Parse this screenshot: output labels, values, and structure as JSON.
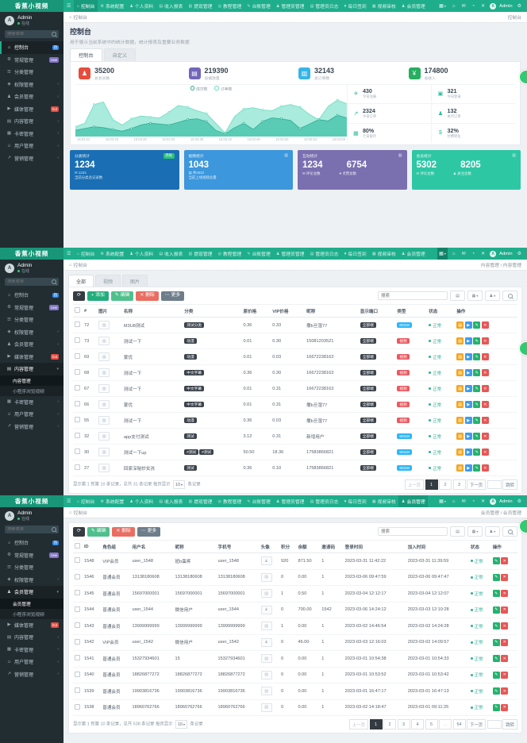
{
  "brand": {
    "logo": "香蕉小视频"
  },
  "navbar": {
    "menu_icon": "☰",
    "items": [
      {
        "label": "控制台",
        "icon": "⌂",
        "icon_name": "home-icon"
      },
      {
        "label": "系统配置",
        "icon": "⚙",
        "icon_name": "gear-icon"
      },
      {
        "label": "个人资料",
        "icon": "♟",
        "icon_name": "user-icon"
      },
      {
        "label": "收入报表",
        "icon": "▤",
        "icon_name": "chart-icon"
      },
      {
        "label": "提现管理",
        "icon": "▥",
        "icon_name": "withdraw-icon"
      },
      {
        "label": "教程管理",
        "icon": "◎",
        "icon_name": "course-icon"
      },
      {
        "label": "台账管理",
        "icon": "✎",
        "icon_name": "ledger-icon"
      },
      {
        "label": "管理员管理",
        "icon": "♟",
        "icon_name": "admin-icon"
      },
      {
        "label": "管理员日志",
        "icon": "▤",
        "icon_name": "log-icon"
      },
      {
        "label": "每日签到",
        "icon": "♥",
        "icon_name": "heart-icon"
      },
      {
        "label": "视频审核",
        "icon": "▦",
        "icon_name": "review-icon"
      },
      {
        "label": "会员管理",
        "icon": "♟",
        "icon_name": "member-icon"
      }
    ],
    "right_icons": [
      {
        "name": "apps-grid-icon",
        "glyph": "▦"
      },
      {
        "name": "home-icon",
        "glyph": "⌂"
      },
      {
        "name": "message-icon",
        "glyph": "✉"
      },
      {
        "name": "bell-icon",
        "glyph": "◔"
      },
      {
        "name": "fullscreen-close-icon",
        "glyph": "✕"
      }
    ],
    "user": "Admin",
    "settings_icon": "⚙"
  },
  "sidebar": {
    "user": "Admin",
    "status": "在线",
    "search_placeholder": "搜索菜单",
    "items": [
      {
        "label": "控制台",
        "icon": "⌂",
        "badge": "热",
        "badge_color": "#2d8cf0"
      },
      {
        "label": "常规管理",
        "icon": "⚙",
        "badge": "new",
        "badge_color": "#8475c7"
      },
      {
        "label": "分类管理",
        "icon": "☰"
      },
      {
        "label": "权限管理",
        "icon": "◈",
        "arrow": true
      },
      {
        "label": "会员管理",
        "icon": "♟",
        "arrow": true
      },
      {
        "label": "媒体管理",
        "icon": "▶",
        "badge": "hot",
        "badge_color": "#e64d42"
      },
      {
        "label": "内容管理",
        "icon": "▤",
        "arrow": true
      },
      {
        "label": "卡密管理",
        "icon": "▦",
        "arrow": true
      },
      {
        "label": "用户管理",
        "icon": "☺",
        "arrow": true
      },
      {
        "label": "营销管理",
        "icon": "↗",
        "arrow": true
      }
    ],
    "states": {
      "panel1": {
        "active": "控制台"
      },
      "panel2": {
        "expanded": "内容管理",
        "subs": [
          "内容管理",
          "小程序浏览视频"
        ],
        "active_sub": "内容管理"
      },
      "panel3": {
        "expanded": "会员管理",
        "subs": [
          "会员管理",
          "小程序浏览视频"
        ],
        "active_sub": "会员管理"
      }
    }
  },
  "panel1": {
    "breadcrumb": "控制台",
    "location": "控制台",
    "title": "控制台",
    "subtitle": "用于展示当前系统中的统计数据，统计报表及重要业务数据",
    "tabs": [
      "控制台",
      "自定义"
    ],
    "active_tab": 0,
    "stat_tiles": [
      {
        "value": "35200",
        "label": "总会员数",
        "color": "#e74c3c",
        "icon": "♟",
        "icon_name": "members-icon"
      },
      {
        "value": "219390",
        "label": "总播放量",
        "color": "#7266ba",
        "icon": "▤",
        "icon_name": "plays-icon"
      },
      {
        "value": "32143",
        "label": "总订单数",
        "color": "#36b5e8",
        "icon": "▥",
        "icon_name": "orders-icon"
      },
      {
        "value": "174800",
        "label": "总收入",
        "color": "#27ae60",
        "icon": "¥",
        "icon_name": "yen-icon"
      }
    ],
    "chart_data": {
      "type": "area",
      "title": "",
      "legend": [
        "成交数",
        "订单数"
      ],
      "legend_position": "top",
      "grid": false,
      "x": [
        "16:03:22",
        "16:03:26",
        "16:03:30",
        "16:03:34",
        "16:03:38",
        "16:03:42",
        "16:03:46",
        "16:03:50",
        "16:03:54",
        "16:03:58"
      ],
      "ylim": [
        0,
        100
      ],
      "series": [
        {
          "name": "订单数",
          "color": "#6fdcc4",
          "fill": "#9ae8d6",
          "values": [
            22,
            30,
            72,
            78,
            38,
            26,
            40,
            46,
            44,
            42,
            55,
            70,
            66,
            58,
            52,
            30,
            8,
            45,
            62,
            65,
            60,
            58,
            68,
            72,
            66,
            50,
            38,
            68,
            82,
            74
          ]
        },
        {
          "name": "成交数",
          "color": "#2fae95",
          "fill": "#4cc5ad",
          "values": [
            14,
            18,
            22,
            20,
            16,
            12,
            18,
            26,
            30,
            28,
            26,
            32,
            38,
            40,
            34,
            14,
            6,
            20,
            30,
            16,
            34,
            42,
            40,
            36,
            18,
            28,
            38,
            35,
            48,
            42
          ]
        }
      ]
    },
    "mini_stats": [
      {
        "value": "430",
        "label": "今日注册",
        "icon": "✈",
        "icon_name": "rocket-icon"
      },
      {
        "value": "321",
        "label": "今日登录",
        "icon": "▣",
        "icon_name": "cart-icon"
      },
      {
        "value": "2324",
        "label": "今日订单",
        "icon": "↗",
        "icon_name": "trend-icon"
      },
      {
        "value": "132",
        "label": "本月订单",
        "icon": "♟",
        "icon_name": "team-icon"
      },
      {
        "value": "80%",
        "label": "七日留存",
        "icon": "▦",
        "icon_name": "card-icon"
      },
      {
        "value": "32%",
        "label": "付费转化",
        "icon": "$",
        "icon_name": "dollar-icon"
      }
    ],
    "summary_cards": [
      {
        "color": "#1a6fb4",
        "title": "分类统计",
        "badge": "周报",
        "value": "1234",
        "foot_icon": "✉",
        "foot_value": "1234",
        "desc": "当前分类总记录数"
      },
      {
        "color": "#3d97dc",
        "title": "视频统计",
        "icon": "▥",
        "value": "1043",
        "foot_icon": "▤",
        "foot_value": "共2532",
        "desc": "当前上线视频总量"
      },
      {
        "color": "#7a70b0",
        "title": "互动统计",
        "icon": "▥",
        "values": [
          "1234",
          "6754"
        ],
        "foot_icons": [
          "✉",
          "♥"
        ],
        "foot_labels": [
          "评论总数",
          "点赞总数"
        ]
      },
      {
        "color": "#2ec7a4",
        "title": "会员统计",
        "icon": "▥",
        "values": [
          "5302",
          "8205"
        ],
        "foot_icons": [
          "✉",
          "♟"
        ],
        "foot_labels": [
          "评论总数",
          "关注总数"
        ]
      }
    ]
  },
  "panel2": {
    "breadcrumb": "控制台",
    "location": "内容管理 / 内容管理",
    "tabs": [
      "全部",
      "视频",
      "图片"
    ],
    "active_tab": 0,
    "toolbar": {
      "refresh_icon": "⟳",
      "add": "添加",
      "edit": "编辑",
      "del": "删除",
      "more": "更多",
      "search_placeholder": "搜索"
    },
    "table": {
      "columns": [
        "#",
        "图片",
        "名称",
        "分类",
        "原价格",
        "VIP价格",
        "昵称",
        "显示端口",
        "类型",
        "状态",
        "操作"
      ],
      "status_label": "正常",
      "show_badge": "全部端",
      "rows": [
        {
          "id": "72",
          "name": "M3U8测试",
          "cats": [
            "测试分类"
          ],
          "price": "0.36",
          "vip": "0.33",
          "nick": "撒b旦湿77",
          "type": "M3U8",
          "type_style": "cyan"
        },
        {
          "id": "73",
          "name": "测试一下",
          "cats": [
            "动漫"
          ],
          "price": "0.01",
          "vip": "0.30",
          "nick": "15081203521",
          "type": "视频",
          "type_style": "red"
        },
        {
          "id": "69",
          "name": "蒙优",
          "cats": [
            "动漫"
          ],
          "price": "0.01",
          "vip": "0.03",
          "nick": "16672238163",
          "type": "视频",
          "type_style": "red"
        },
        {
          "id": "68",
          "name": "测试一下",
          "cats": [
            "中文字幕"
          ],
          "price": "0.36",
          "vip": "0.30",
          "nick": "16672238163",
          "type": "视频",
          "type_style": "red"
        },
        {
          "id": "67",
          "name": "测试一下",
          "cats": [
            "中文字幕"
          ],
          "price": "0.01",
          "vip": "0.31",
          "nick": "16672238163",
          "type": "视频",
          "type_style": "red"
        },
        {
          "id": "66",
          "name": "蒙优",
          "cats": [
            "中文字幕"
          ],
          "price": "0.01",
          "vip": "0.31",
          "nick": "撒b旦湿77",
          "type": "视频",
          "type_style": "red"
        },
        {
          "id": "55",
          "name": "测试一下",
          "cats": [
            "动漫"
          ],
          "price": "0.36",
          "vip": "0.03",
          "nick": "撒b旦湿77",
          "type": "视频",
          "type_style": "red"
        },
        {
          "id": "32",
          "name": "app支付测试",
          "cats": [
            "测试"
          ],
          "price": "3.12",
          "vip": "0.31",
          "nick": "新增用户",
          "type": "M3U8",
          "type_style": "cyan"
        },
        {
          "id": "30",
          "name": "测试一下up",
          "cats": [
            "#测试",
            "#测试"
          ],
          "price": "50.50",
          "vip": "18.36",
          "nick": "17583866821",
          "type": "M3U8",
          "type_style": "cyan"
        },
        {
          "id": "27",
          "name": "回家深秘妙女孩",
          "cats": [
            "测试"
          ],
          "price": "0.36",
          "vip": "0.10",
          "nick": "17583866821",
          "type": "M3U8",
          "type_style": "cyan"
        }
      ],
      "ops": [
        {
          "name": "detail-button",
          "glyph": "▤",
          "cls": "op-orange"
        },
        {
          "name": "play-button",
          "glyph": "▶",
          "cls": "op-blue"
        },
        {
          "name": "edit-button",
          "glyph": "✎",
          "cls": "op-green"
        },
        {
          "name": "delete-button",
          "glyph": "✕",
          "cls": "op-red"
        }
      ]
    },
    "pagination": {
      "info_prefix": "显示第 1 到第 10 条记录，总共 31 条记录 每页显示",
      "page_size": "10",
      "info_suffix": "条记录",
      "prev": "上一页",
      "pages": [
        "1",
        "2",
        "3"
      ],
      "active": "1",
      "next": "下一页",
      "jump": "跳转"
    }
  },
  "panel3": {
    "breadcrumb": "控制台",
    "location": "会员管理 / 会员管理",
    "toolbar": {
      "refresh_icon": "⟳",
      "edit": "编辑",
      "del": "删除",
      "more": "更多",
      "search_placeholder": "搜索"
    },
    "table": {
      "columns": [
        "ID",
        "角色组",
        "用户名",
        "昵称",
        "手机号",
        "头像",
        "积分",
        "余额",
        "邀请码",
        "登录时间",
        "加入时间",
        "状态",
        "操作"
      ],
      "status_label": "正常",
      "rows": [
        {
          "id": "1548",
          "role": "VIP会员",
          "username": "user_1548",
          "nick": "妞b蛋疼",
          "phone": "user_1548",
          "avatar": "upload",
          "score": "920",
          "money": "871.50",
          "invite": "1",
          "login": "2023-03-31 11:42:22",
          "join": "2023-03-31 11:39:59"
        },
        {
          "id": "1546",
          "role": "普通会员",
          "username": "13138180608",
          "nick": "13138180608",
          "phone": "13138180608",
          "avatar": "broken",
          "score": "0",
          "money": "0.00",
          "invite": "1",
          "login": "2023-03-06 09:47:59",
          "join": "2023-03-06 09:47:47"
        },
        {
          "id": "1545",
          "role": "普通会员",
          "username": "15697000001",
          "nick": "15697000001",
          "phone": "15697000001",
          "avatar": "broken",
          "score": "1",
          "money": "0.50",
          "invite": "1",
          "login": "2023-03-04 12:12:17",
          "join": "2023-03-04 12:12:07"
        },
        {
          "id": "1544",
          "role": "普通会员",
          "username": "user_1544",
          "nick": "微信用户",
          "phone": "user_1544",
          "avatar": "upload",
          "score": "0",
          "money": "700.00",
          "invite": "1542",
          "login": "2023-03-06 14:24:12",
          "join": "2023-03-03 12:10:28"
        },
        {
          "id": "1543",
          "role": "普通会员",
          "username": "13999999999",
          "nick": "13999999999",
          "phone": "13999999999",
          "avatar": "broken",
          "score": "1",
          "money": "0.00",
          "invite": "1",
          "login": "2023-03-02 14:46:54",
          "join": "2023-03-02 14:24:28"
        },
        {
          "id": "1542",
          "role": "VIP会员",
          "username": "user_1542",
          "nick": "微信用户",
          "phone": "user_1542",
          "avatar": "upload",
          "score": "0",
          "money": "46.00",
          "invite": "1",
          "login": "2023-03-03 12:16:03",
          "join": "2023-03-02 14:09:57"
        },
        {
          "id": "1541",
          "role": "普通会员",
          "username": "15327934601",
          "nick": "15",
          "phone": "15327934601",
          "avatar": "broken",
          "score": "0",
          "money": "0.00",
          "invite": "1",
          "login": "2023-03-01 10:54:38",
          "join": "2023-03-01 10:54:33"
        },
        {
          "id": "1540",
          "role": "普通会员",
          "username": "18826877272",
          "nick": "18826877272",
          "phone": "18826877272",
          "avatar": "broken",
          "score": "0",
          "money": "0.00",
          "invite": "1",
          "login": "2023-03-01 10:53:52",
          "join": "2023-03-01 10:53:42"
        },
        {
          "id": "1539",
          "role": "普通会员",
          "username": "19903816736",
          "nick": "19903816736",
          "phone": "19903816736",
          "avatar": "broken",
          "score": "0",
          "money": "0.00",
          "invite": "1",
          "login": "2023-03-01 16:47:17",
          "join": "2023-03-01 16:47:13"
        },
        {
          "id": "1538",
          "role": "普通会员",
          "username": "18960762766",
          "nick": "18960762766",
          "phone": "18960762766",
          "avatar": "broken",
          "score": "0",
          "money": "0.00",
          "invite": "1",
          "login": "2023-03-02 14:18:47",
          "join": "2023-03-01 09:11:25"
        }
      ],
      "ops": [
        {
          "name": "edit-button",
          "glyph": "✎",
          "cls": "op-green"
        },
        {
          "name": "delete-button",
          "glyph": "✕",
          "cls": "op-red"
        }
      ]
    },
    "pagination": {
      "info_prefix": "显示第 1 到第 10 条记录，总共 538 条记录 每页显示",
      "page_size": "10",
      "info_suffix": "条记录",
      "prev": "上一页",
      "pages": [
        "1",
        "2",
        "3",
        "4",
        "5",
        "...",
        "54"
      ],
      "active": "1",
      "next": "下一页",
      "jump": "跳转"
    }
  }
}
